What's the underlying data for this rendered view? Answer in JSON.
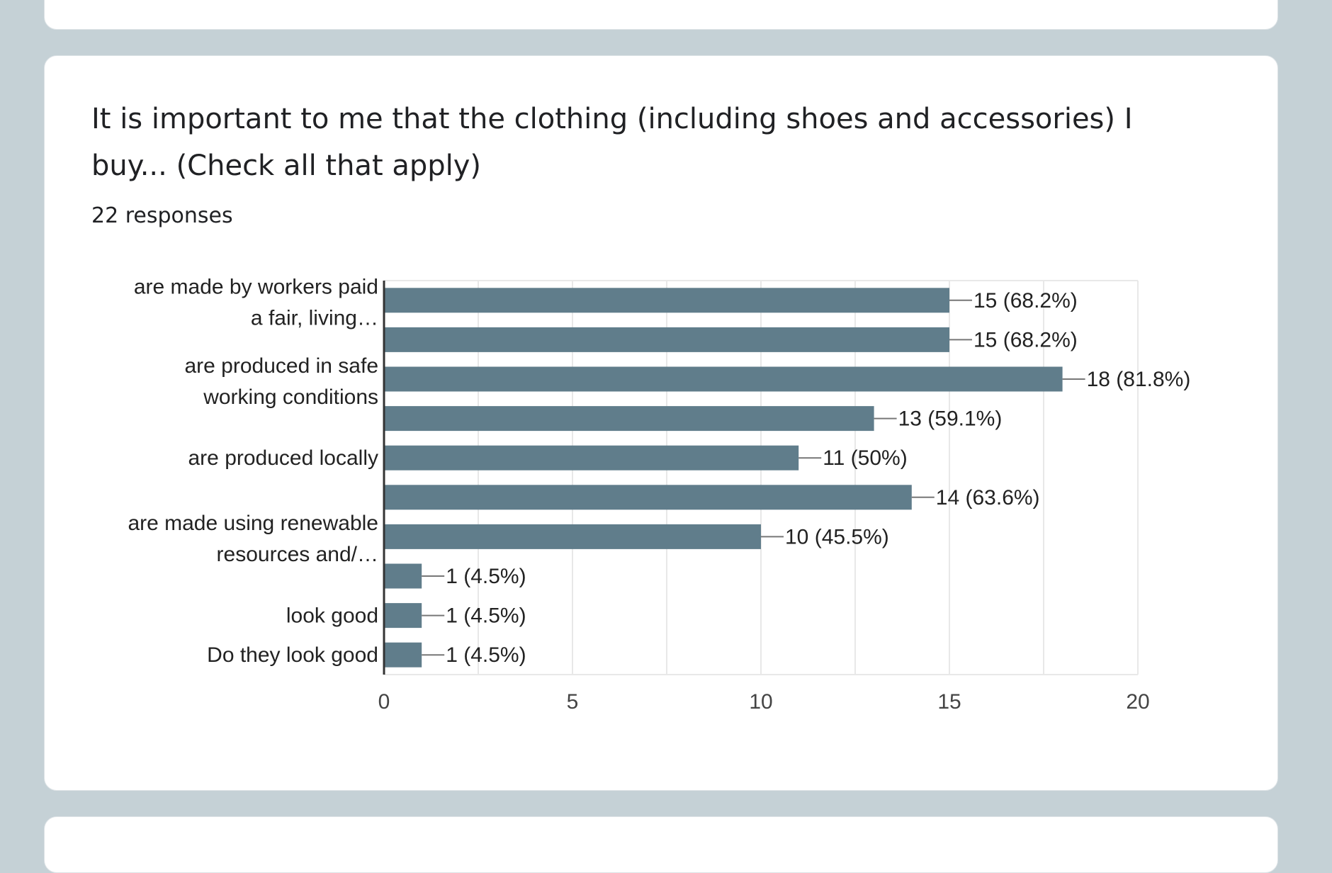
{
  "question": {
    "title": "It is important to me that the clothing (including shoes and accessories) I buy... (Check all that apply)",
    "responses": "22 responses"
  },
  "colors": {
    "bar": "#607d8b",
    "grid": "#e8e8e8",
    "axis": "#333333",
    "background": "#c5d1d6"
  },
  "chart_data": {
    "type": "bar",
    "orientation": "horizontal",
    "categories": [
      "are made by workers paid a fair, living…",
      "",
      "are produced in safe working conditions",
      "",
      "are produced locally",
      "",
      "are made using renewable resources and/…",
      "",
      "look good",
      "Do they look good"
    ],
    "values": [
      15,
      15,
      18,
      13,
      11,
      14,
      10,
      1,
      1,
      1
    ],
    "data_labels": [
      "15 (68.2%)",
      "15 (68.2%)",
      "18 (81.8%)",
      "13 (59.1%)",
      "11 (50%)",
      "14 (63.6%)",
      "10 (45.5%)",
      "1 (4.5%)",
      "1 (4.5%)",
      "1 (4.5%)"
    ],
    "xlim": [
      0,
      20
    ],
    "xticks": [
      "0",
      "5",
      "10",
      "15",
      "20"
    ],
    "grid": true,
    "title": "",
    "xlabel": "",
    "ylabel": ""
  }
}
